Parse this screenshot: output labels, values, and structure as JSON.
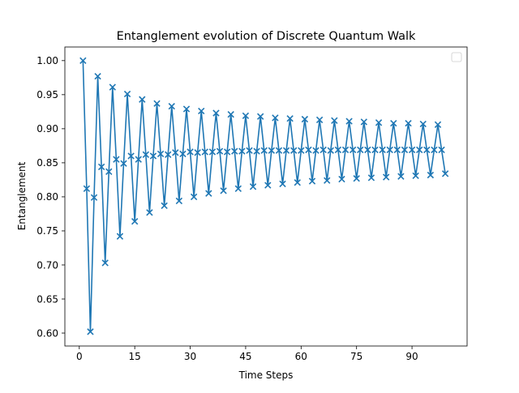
{
  "chart_data": {
    "type": "line",
    "title": "Entanglement evolution of Discrete Quantum Walk",
    "xlabel": "Time Steps",
    "ylabel": "Entanglement",
    "xlim": [
      -3.9,
      104.9
    ],
    "ylim": [
      0.581,
      1.02
    ],
    "xticks": [
      0,
      15,
      30,
      45,
      60,
      75,
      90
    ],
    "yticks": [
      0.6,
      0.65,
      0.7,
      0.75,
      0.8,
      0.85,
      0.9,
      0.95,
      1.0
    ],
    "ytick_labels": [
      "0.60",
      "0.65",
      "0.70",
      "0.75",
      "0.80",
      "0.85",
      "0.90",
      "0.95",
      "1.00"
    ],
    "grid": false,
    "legend": {
      "placement": "upper-right",
      "entries": []
    },
    "series": [
      {
        "color": "#1f77b4",
        "marker": "x",
        "x": [
          1,
          2,
          3,
          4,
          5,
          6,
          7,
          8,
          9,
          10,
          11,
          12,
          13,
          14,
          15,
          16,
          17,
          18,
          19,
          20,
          21,
          22,
          23,
          24,
          25,
          26,
          27,
          28,
          29,
          30,
          31,
          32,
          33,
          34,
          35,
          36,
          37,
          38,
          39,
          40,
          41,
          42,
          43,
          44,
          45,
          46,
          47,
          48,
          49,
          50,
          51,
          52,
          53,
          54,
          55,
          56,
          57,
          58,
          59,
          60,
          61,
          62,
          63,
          64,
          65,
          66,
          67,
          68,
          69,
          70,
          71,
          72,
          73,
          74,
          75,
          76,
          77,
          78,
          79,
          80,
          81,
          82,
          83,
          84,
          85,
          86,
          87,
          88,
          89,
          90,
          91,
          92,
          93,
          94,
          95,
          96,
          97,
          98,
          99
        ],
        "y": [
          1.0,
          0.812,
          0.602,
          0.799,
          0.977,
          0.844,
          0.703,
          0.837,
          0.961,
          0.855,
          0.742,
          0.849,
          0.951,
          0.86,
          0.764,
          0.855,
          0.943,
          0.862,
          0.777,
          0.86,
          0.937,
          0.863,
          0.787,
          0.862,
          0.933,
          0.865,
          0.794,
          0.863,
          0.929,
          0.866,
          0.8,
          0.865,
          0.926,
          0.866,
          0.805,
          0.866,
          0.923,
          0.867,
          0.809,
          0.866,
          0.921,
          0.867,
          0.812,
          0.867,
          0.919,
          0.868,
          0.815,
          0.867,
          0.918,
          0.868,
          0.817,
          0.868,
          0.916,
          0.868,
          0.819,
          0.868,
          0.915,
          0.868,
          0.821,
          0.868,
          0.914,
          0.869,
          0.823,
          0.868,
          0.913,
          0.869,
          0.824,
          0.868,
          0.912,
          0.869,
          0.826,
          0.869,
          0.911,
          0.869,
          0.827,
          0.869,
          0.91,
          0.869,
          0.828,
          0.869,
          0.909,
          0.869,
          0.829,
          0.869,
          0.908,
          0.869,
          0.83,
          0.869,
          0.908,
          0.869,
          0.831,
          0.869,
          0.907,
          0.869,
          0.832,
          0.869,
          0.906,
          0.869,
          0.834
        ]
      }
    ]
  }
}
